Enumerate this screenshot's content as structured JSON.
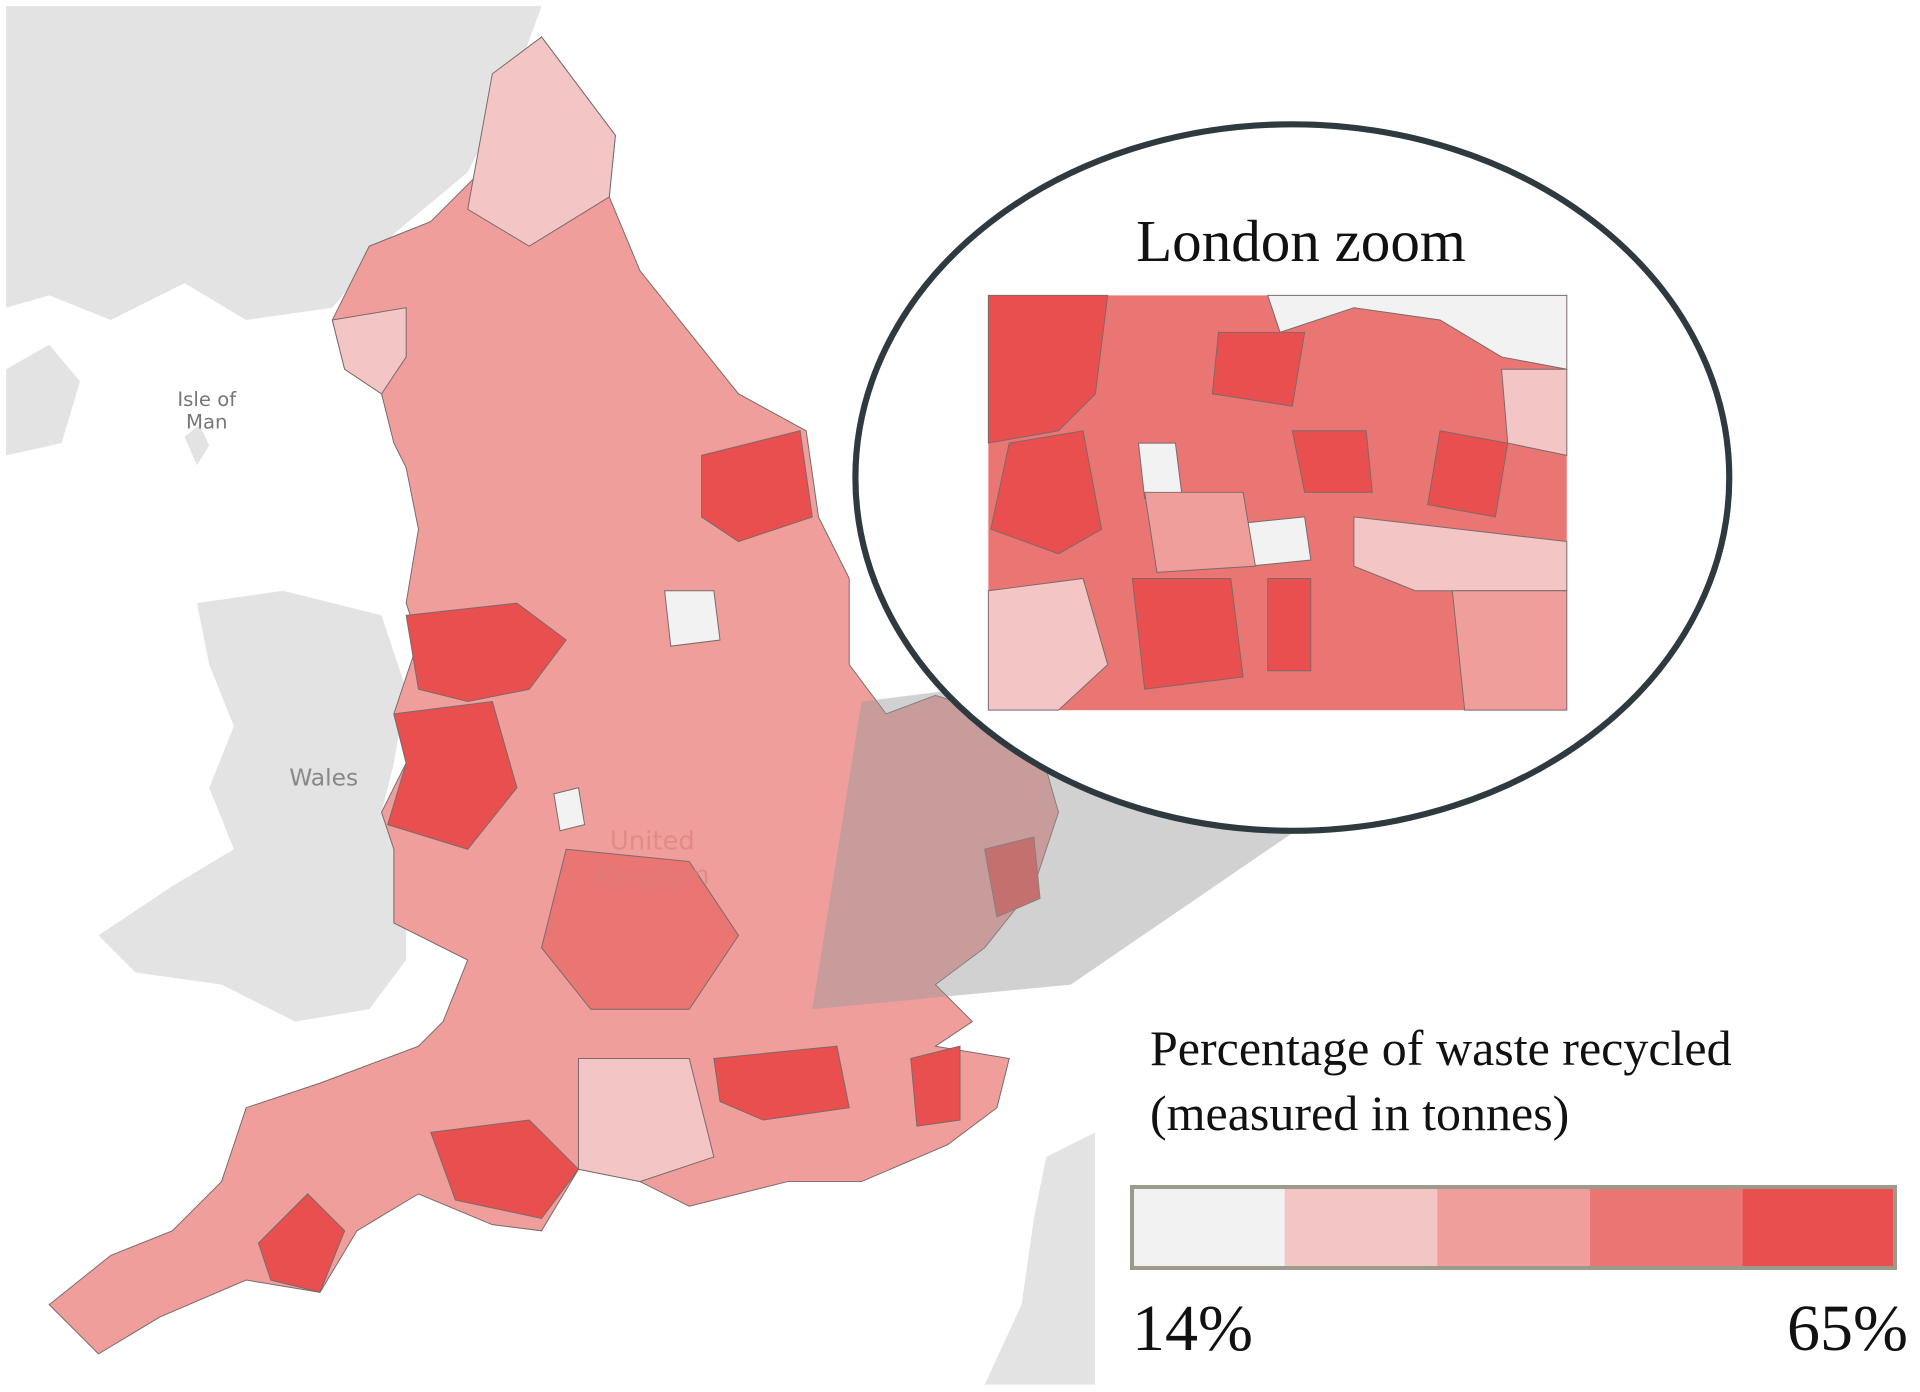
{
  "map": {
    "place_labels": {
      "isle_of_man": [
        "Isle of",
        "Man"
      ],
      "wales": "Wales",
      "united_kingdom": [
        "United",
        "Kingdom"
      ]
    },
    "zoom_title": "London zoom",
    "legend": {
      "title": [
        "Percentage of waste recycled",
        "(measured in tonnes)"
      ],
      "min": {
        "value": 14,
        "label": "14%"
      },
      "max": {
        "value": 65,
        "label": "65%"
      },
      "colors": [
        "#f2f2f2",
        "#f3c5c4",
        "#ef9e9c",
        "#ea7674",
        "#e84f4e"
      ]
    }
  }
}
